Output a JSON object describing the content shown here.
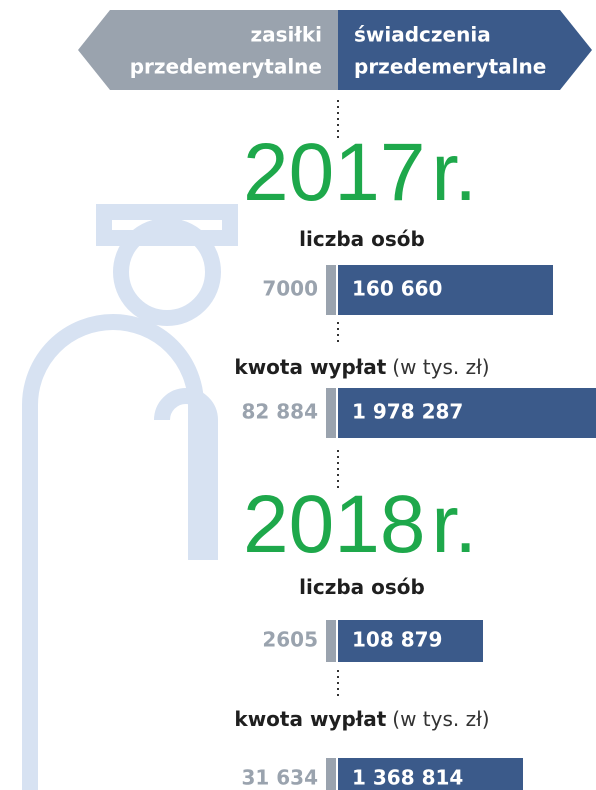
{
  "header": {
    "left": [
      "zasiłki",
      "przedemerytalne"
    ],
    "right": [
      "świadczenia",
      "przedemerytalne"
    ]
  },
  "years": [
    {
      "year": "2017",
      "suffix": "r.",
      "sections": [
        {
          "label": "liczba osób",
          "left": "7000",
          "right": "160 660"
        },
        {
          "label": "kwota wypłat",
          "note": "(w tys. zł)",
          "left": "82 884",
          "right": "1 978 287"
        }
      ]
    },
    {
      "year": "2018",
      "suffix": "r.",
      "sections": [
        {
          "label": "liczba osób",
          "left": "2605",
          "right": "108 879"
        },
        {
          "label": "kwota wypłat",
          "note": "(w tys. zł)",
          "left": "31 634",
          "right": "1 368 814"
        }
      ]
    }
  ]
}
